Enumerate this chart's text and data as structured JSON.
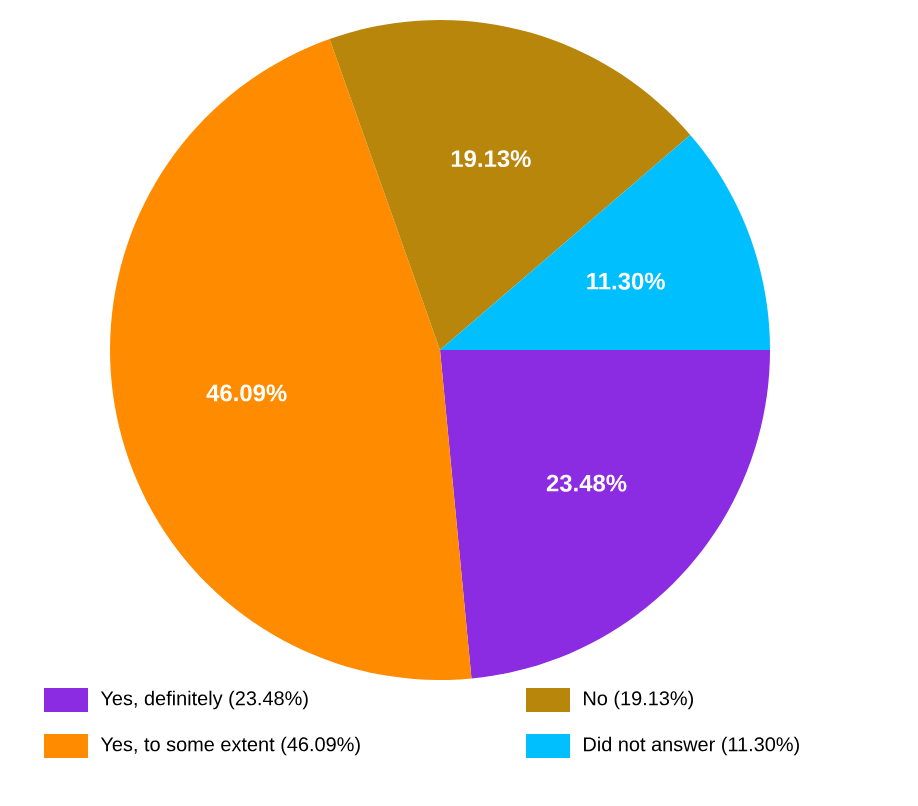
{
  "chart_data": {
    "type": "pie",
    "categories": [
      "Yes, definitely (23.48%)",
      "Yes, to some extent (46.09%)",
      "No (19.13%)",
      "Did not answer (11.30%)"
    ],
    "values": [
      23.48,
      46.09,
      19.13,
      11.3
    ],
    "value_labels": [
      "23.48%",
      "46.09%",
      "19.13%",
      "11.30%"
    ],
    "colors": [
      "#8b2be2",
      "#ff8c00",
      "#b8860b",
      "#00bfff"
    ],
    "legend": "bottom"
  }
}
